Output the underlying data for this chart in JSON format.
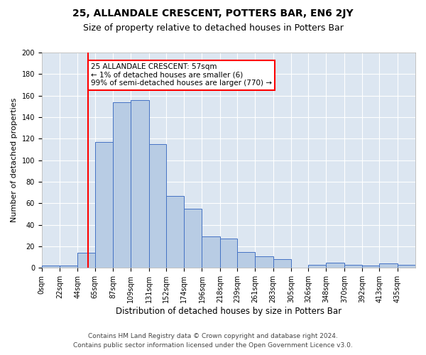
{
  "title": "25, ALLANDALE CRESCENT, POTTERS BAR, EN6 2JY",
  "subtitle": "Size of property relative to detached houses in Potters Bar",
  "xlabel": "Distribution of detached houses by size in Potters Bar",
  "ylabel": "Number of detached properties",
  "bin_labels": [
    "0sqm",
    "22sqm",
    "44sqm",
    "65sqm",
    "87sqm",
    "109sqm",
    "131sqm",
    "152sqm",
    "174sqm",
    "196sqm",
    "218sqm",
    "239sqm",
    "261sqm",
    "283sqm",
    "305sqm",
    "326sqm",
    "348sqm",
    "370sqm",
    "392sqm",
    "413sqm",
    "435sqm"
  ],
  "bar_heights": [
    2,
    2,
    14,
    117,
    154,
    156,
    115,
    67,
    55,
    29,
    27,
    15,
    11,
    8,
    0,
    3,
    5,
    3,
    2,
    4,
    3
  ],
  "bar_color": "#b8cce4",
  "bar_edge_color": "#4472c4",
  "background_color": "#dce6f1",
  "annotation_line1": "25 ALLANDALE CRESCENT: 57sqm",
  "annotation_line2": "← 1% of detached houses are smaller (6)",
  "annotation_line3": "99% of semi-detached houses are larger (770) →",
  "annotation_box_color": "white",
  "annotation_box_edge_color": "red",
  "vline_x": 57,
  "ylim": [
    0,
    200
  ],
  "yticks": [
    0,
    20,
    40,
    60,
    80,
    100,
    120,
    140,
    160,
    180,
    200
  ],
  "footer_line1": "Contains HM Land Registry data © Crown copyright and database right 2024.",
  "footer_line2": "Contains public sector information licensed under the Open Government Licence v3.0.",
  "title_fontsize": 10,
  "subtitle_fontsize": 9,
  "xlabel_fontsize": 8.5,
  "ylabel_fontsize": 8,
  "tick_fontsize": 7,
  "annotation_fontsize": 7.5,
  "footer_fontsize": 6.5
}
